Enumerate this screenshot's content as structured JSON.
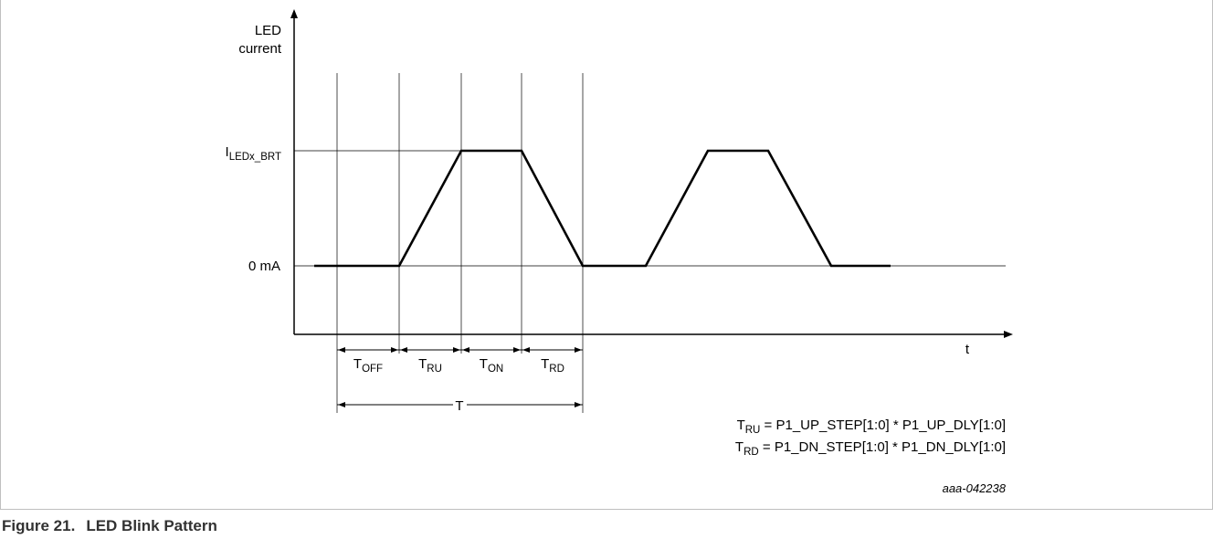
{
  "diagram": {
    "y_axis_label_line1": "LED",
    "y_axis_label_line2": "current",
    "x_axis_label": "t",
    "level_high": {
      "main": "I",
      "sub": "LEDx_BRT"
    },
    "level_low": "0 mA",
    "intervals": [
      {
        "main": "T",
        "sub": "OFF"
      },
      {
        "main": "T",
        "sub": "RU"
      },
      {
        "main": "T",
        "sub": "ON"
      },
      {
        "main": "T",
        "sub": "RD"
      }
    ],
    "period_label": "T",
    "formulas": [
      {
        "main": "T",
        "sub": "RU",
        "expr": " = P1_UP_STEP[1:0] * P1_UP_DLY[1:0]"
      },
      {
        "main": "T",
        "sub": "RD",
        "expr": " = P1_DN_STEP[1:0] * P1_DN_DLY[1:0]"
      }
    ],
    "figure_id": "aaa-042238"
  },
  "caption": {
    "number": "Figure 21.",
    "title": "LED Blink Pattern"
  },
  "colors": {
    "frame": "#bfbfbf",
    "line": "#000000",
    "caption": "#323232"
  }
}
